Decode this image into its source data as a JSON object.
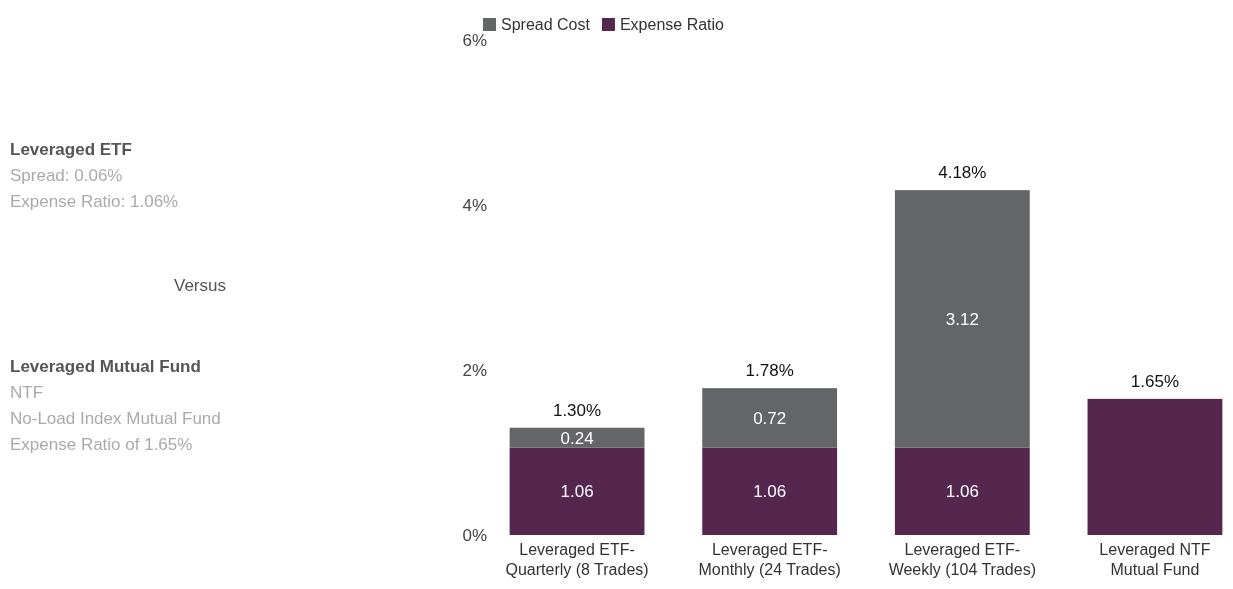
{
  "chart_data": {
    "type": "bar",
    "stacked": true,
    "categories": [
      "Leveraged ETF-Quarterly (8 Trades)",
      "Leveraged ETF-Monthly (24 Trades)",
      "Leveraged ETF-Weekly (104 Trades)",
      "Leveraged NTF Mutual Fund"
    ],
    "series": [
      {
        "name": "Expense Ratio",
        "color": "#55264e",
        "values": [
          1.06,
          1.06,
          1.06,
          1.65
        ],
        "value_labels": [
          "1.06",
          "1.06",
          "1.06",
          null
        ]
      },
      {
        "name": "Spread Cost",
        "color": "#646567",
        "values": [
          0.24,
          0.72,
          3.12,
          null
        ],
        "value_labels": [
          "0.24",
          "0.72",
          "3.12",
          null
        ]
      }
    ],
    "totals": [
      "1.30%",
      "1.78%",
      "4.18%",
      "1.65%"
    ],
    "ylim": [
      0,
      6
    ],
    "yticks": [
      {
        "value": 0,
        "label": "0%"
      },
      {
        "value": 2,
        "label": "2%"
      },
      {
        "value": 4,
        "label": "4%"
      },
      {
        "value": 6,
        "label": "6%"
      }
    ],
    "legend": "top",
    "grid": false,
    "annotations": [
      "Leveraged ETF",
      "Spread: 0.06%",
      "Expense Ratio: 1.06%",
      "Versus",
      "Leveraged Mutual Fund",
      "NTF",
      "No-Load Index Mutual Fund",
      "Expense Ratio of 1.65%"
    ]
  }
}
